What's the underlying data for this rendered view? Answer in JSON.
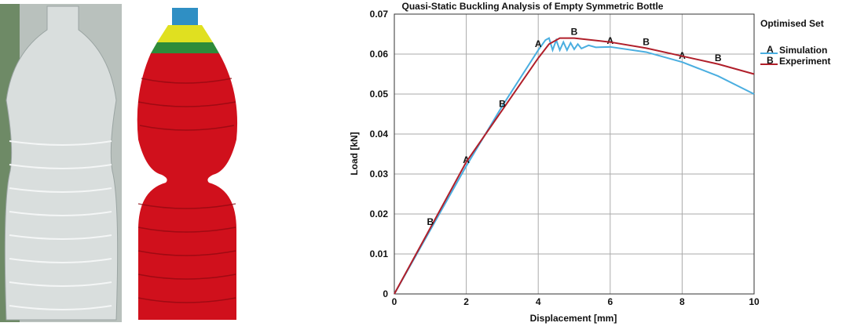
{
  "chart_data": {
    "type": "line",
    "title": "Quasi-Static Buckling Analysis of Empty Symmetric Bottle",
    "x_label": "Displacement [mm]",
    "y_label": "Load [kN]",
    "legend_title": "Optimised Set",
    "legend_position": "right",
    "grid": true,
    "xlim": [
      0,
      10
    ],
    "xticks": [
      0,
      2,
      4,
      6,
      8,
      10
    ],
    "ylim": [
      0,
      0.07
    ],
    "yticks": [
      0,
      0.01,
      0.02,
      0.03,
      0.04,
      0.05,
      0.06,
      0.07
    ],
    "series": [
      {
        "name": "Simulation",
        "marker": "A",
        "color": "#4aaee0",
        "x": [
          0,
          1,
          2,
          3,
          4,
          4.2,
          4.3,
          4.4,
          4.5,
          4.6,
          4.7,
          4.8,
          4.9,
          5,
          5.1,
          5.2,
          5.4,
          5.6,
          6,
          7,
          8,
          9,
          10
        ],
        "values": [
          0,
          0.016,
          0.032,
          0.047,
          0.061,
          0.0635,
          0.064,
          0.061,
          0.0635,
          0.061,
          0.063,
          0.061,
          0.0628,
          0.0612,
          0.0625,
          0.0614,
          0.0622,
          0.0617,
          0.0618,
          0.0605,
          0.058,
          0.0545,
          0.05
        ]
      },
      {
        "name": "Experiment",
        "marker": "B",
        "color": "#b01f2a",
        "x": [
          0,
          1,
          2,
          3,
          4,
          4.3,
          4.6,
          5,
          6,
          7,
          8,
          9,
          10
        ],
        "values": [
          0,
          0.0165,
          0.033,
          0.046,
          0.059,
          0.0625,
          0.064,
          0.064,
          0.063,
          0.0615,
          0.0595,
          0.0575,
          0.055
        ]
      }
    ]
  }
}
